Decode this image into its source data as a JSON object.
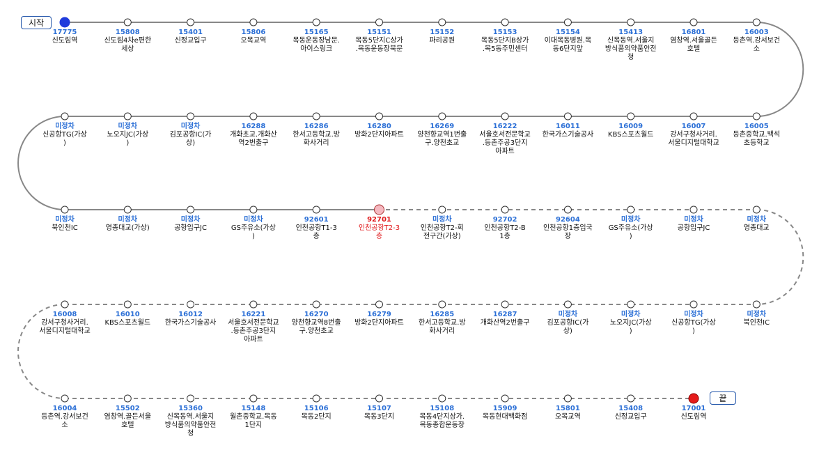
{
  "labels": {
    "start": "시작",
    "end": "끝"
  },
  "colors": {
    "route_line": "#888888",
    "stop_fill": "#ffffff",
    "stop_border": "#333333",
    "start_marker": "#1f3bdc",
    "end_marker": "#e51b1b",
    "current_marker": "#f5b8c0",
    "code_text": "#2b6fd6",
    "current_text": "#e0181b"
  },
  "rows": [
    {
      "direction": "ltr",
      "stops": [
        {
          "code": "17775",
          "name": "신도림역",
          "marker": "start"
        },
        {
          "code": "15808",
          "name": "신도림4차e편한\n세상"
        },
        {
          "code": "15401",
          "name": "신정교입구"
        },
        {
          "code": "15806",
          "name": "오목교역"
        },
        {
          "code": "15165",
          "name": "목동운동장남문.\n아이스링크"
        },
        {
          "code": "15151",
          "name": "목동5단지C상가\n.목동운동장북문"
        },
        {
          "code": "15152",
          "name": "파리공원"
        },
        {
          "code": "15153",
          "name": "목동5단지B상가\n.목5동주민센터"
        },
        {
          "code": "15154",
          "name": "이대목동병원.목\n동6단지앞"
        },
        {
          "code": "15413",
          "name": "신목동역.서울지\n방식품의약품안전\n청"
        },
        {
          "code": "16801",
          "name": "염창역.서울골든\n호텔"
        },
        {
          "code": "16003",
          "name": "등촌역.강서보건\n소"
        }
      ]
    },
    {
      "direction": "rtl",
      "stops": [
        {
          "code": "16005",
          "name": "등촌중학교.백석\n초등학교"
        },
        {
          "code": "16007",
          "name": "강서구청사거리.\n서울디지털대학교"
        },
        {
          "code": "16009",
          "name": "KBS스포츠월드"
        },
        {
          "code": "16011",
          "name": "한국가스기술공사"
        },
        {
          "code": "16222",
          "name": "서울호서전문학교\n.등촌주공3단지\n아파트"
        },
        {
          "code": "16269",
          "name": "양천향교역1번출\n구.양천초교"
        },
        {
          "code": "16280",
          "name": "방화2단지아파트"
        },
        {
          "code": "16286",
          "name": "한서고등학교.방\n화사거리"
        },
        {
          "code": "16288",
          "name": "개화초교.개화산\n역2번출구"
        },
        {
          "code": "미정차",
          "name": "김포공항IC(가\n상)"
        },
        {
          "code": "미정차",
          "name": "노오지JC(가상\n)"
        },
        {
          "code": "미정차",
          "name": "신공항TG(가상\n)"
        }
      ]
    },
    {
      "direction": "ltr",
      "stops": [
        {
          "code": "미정차",
          "name": "북인천IC"
        },
        {
          "code": "미정차",
          "name": "영종대교(가상)"
        },
        {
          "code": "미정차",
          "name": "공항입구JC"
        },
        {
          "code": "미정차",
          "name": "GS주유소(가상\n)"
        },
        {
          "code": "92601",
          "name": "인천공항T1-3\n층"
        },
        {
          "code": "92701",
          "name": "인천공항T2-3\n층",
          "marker": "current"
        },
        {
          "code": "미정차",
          "name": "인천공항T2-회\n전구간(가상)"
        },
        {
          "code": "92702",
          "name": "인천공항T2-B\n1층"
        },
        {
          "code": "92604",
          "name": "인천공항1층입국\n장"
        },
        {
          "code": "미정차",
          "name": "GS주유소(가상\n)"
        },
        {
          "code": "미정차",
          "name": "공항입구JC"
        },
        {
          "code": "미정차",
          "name": "영종대교"
        }
      ]
    },
    {
      "direction": "rtl",
      "stops": [
        {
          "code": "미정차",
          "name": "북인천IC"
        },
        {
          "code": "미정차",
          "name": "신공항TG(가상\n)"
        },
        {
          "code": "미정차",
          "name": "노오지JC(가상\n)"
        },
        {
          "code": "미정차",
          "name": "김포공항IC(가\n상)"
        },
        {
          "code": "16287",
          "name": "개화산역2번출구"
        },
        {
          "code": "16285",
          "name": "한서고등학교.방\n화사거리"
        },
        {
          "code": "16279",
          "name": "방화2단지아파트"
        },
        {
          "code": "16270",
          "name": "양천향교역8번출\n구.양천초교"
        },
        {
          "code": "16221",
          "name": "서울호서전문학교\n.등촌주공3단지\n아파트"
        },
        {
          "code": "16012",
          "name": "한국가스기술공사"
        },
        {
          "code": "16010",
          "name": "KBS스포츠월드"
        },
        {
          "code": "16008",
          "name": "강서구청사거리.\n서울디지털대학교"
        }
      ]
    },
    {
      "direction": "ltr",
      "stops": [
        {
          "code": "16004",
          "name": "등촌역.강서보건\n소"
        },
        {
          "code": "15502",
          "name": "염창역.골든서울\n호텔"
        },
        {
          "code": "15360",
          "name": "신목동역.서울지\n방식품의약품안전\n청"
        },
        {
          "code": "15148",
          "name": "월촌중학교.목동\n1단지"
        },
        {
          "code": "15106",
          "name": "목동2단지"
        },
        {
          "code": "15107",
          "name": "목동3단지"
        },
        {
          "code": "15108",
          "name": "목동4단지상가.\n목동종합운동장"
        },
        {
          "code": "15909",
          "name": "목동현대백화점"
        },
        {
          "code": "15801",
          "name": "오목교역"
        },
        {
          "code": "15408",
          "name": "신정교입구"
        },
        {
          "code": "17001",
          "name": "신도림역",
          "marker": "end"
        }
      ]
    }
  ]
}
